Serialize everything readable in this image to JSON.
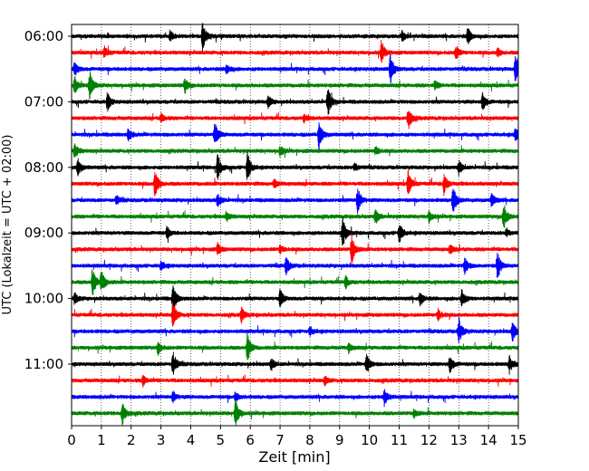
{
  "chart_data": {
    "type": "line",
    "title": "",
    "xlabel": "Zeit  [min]",
    "ylabel": "UTC (Lokalzeit = UTC + 02:00)",
    "xlim": [
      0,
      15
    ],
    "x_ticks": [
      "0",
      "1",
      "2",
      "3",
      "4",
      "5",
      "6",
      "7",
      "8",
      "9",
      "10",
      "11",
      "12",
      "13",
      "14",
      "15"
    ],
    "y_tick_labels": [
      "06:00",
      "07:00",
      "08:00",
      "09:00",
      "10:00",
      "11:00"
    ],
    "trace_start_times": [
      "06:00",
      "06:15",
      "06:30",
      "06:45",
      "07:00",
      "07:15",
      "07:30",
      "07:45",
      "08:00",
      "08:15",
      "08:30",
      "08:45",
      "09:00",
      "09:15",
      "09:30",
      "09:45",
      "10:00",
      "10:15",
      "10:30",
      "10:45",
      "11:00",
      "11:15",
      "11:30",
      "11:45"
    ],
    "trace_colors": [
      "#000000",
      "#ff0000",
      "#0000ff",
      "#008000"
    ],
    "grid": "vertical dotted",
    "events": [
      [
        [
          4.4,
          1.0
        ],
        [
          13.3,
          0.6
        ],
        [
          3.3,
          0.35
        ],
        [
          11.1,
          0.3
        ]
      ],
      [
        [
          10.4,
          0.8
        ],
        [
          1.1,
          0.4
        ],
        [
          12.9,
          0.5
        ],
        [
          14.3,
          0.3
        ]
      ],
      [
        [
          0.1,
          0.5
        ],
        [
          10.7,
          1.0
        ],
        [
          14.9,
          1.0
        ],
        [
          5.2,
          0.35
        ]
      ],
      [
        [
          0.6,
          1.0
        ],
        [
          0.1,
          0.6
        ],
        [
          3.8,
          0.5
        ],
        [
          12.2,
          0.3
        ]
      ],
      [
        [
          8.6,
          1.0
        ],
        [
          1.2,
          0.6
        ],
        [
          13.8,
          0.6
        ],
        [
          6.6,
          0.4
        ]
      ],
      [
        [
          11.3,
          0.8
        ],
        [
          3.0,
          0.3
        ],
        [
          7.8,
          0.25
        ]
      ],
      [
        [
          8.3,
          1.0
        ],
        [
          4.8,
          0.9
        ],
        [
          1.9,
          0.4
        ],
        [
          14.9,
          0.5
        ]
      ],
      [
        [
          0.1,
          0.5
        ],
        [
          7.0,
          0.35
        ],
        [
          10.2,
          0.3
        ]
      ],
      [
        [
          5.9,
          1.0
        ],
        [
          4.9,
          0.9
        ],
        [
          0.2,
          0.6
        ],
        [
          13.0,
          0.45
        ],
        [
          9.5,
          0.3
        ]
      ],
      [
        [
          2.8,
          1.0
        ],
        [
          11.3,
          0.9
        ],
        [
          12.5,
          0.7
        ],
        [
          6.8,
          0.3
        ]
      ],
      [
        [
          9.6,
          0.9
        ],
        [
          12.8,
          1.0
        ],
        [
          14.1,
          0.5
        ],
        [
          4.9,
          0.5
        ],
        [
          1.5,
          0.3
        ]
      ],
      [
        [
          14.5,
          1.0
        ],
        [
          10.2,
          0.5
        ],
        [
          12.0,
          0.4
        ],
        [
          5.2,
          0.3
        ]
      ],
      [
        [
          9.1,
          1.0
        ],
        [
          11.0,
          0.7
        ],
        [
          3.2,
          0.4
        ],
        [
          14.6,
          0.3
        ]
      ],
      [
        [
          9.4,
          1.0
        ],
        [
          4.9,
          0.4
        ],
        [
          7.0,
          0.3
        ],
        [
          12.7,
          0.3
        ]
      ],
      [
        [
          14.3,
          0.9
        ],
        [
          7.2,
          0.6
        ],
        [
          13.2,
          0.6
        ],
        [
          3.0,
          0.3
        ]
      ],
      [
        [
          0.7,
          1.0
        ],
        [
          1.0,
          0.8
        ],
        [
          9.2,
          0.4
        ]
      ],
      [
        [
          3.4,
          1.0
        ],
        [
          7.0,
          0.6
        ],
        [
          11.7,
          0.5
        ],
        [
          13.1,
          0.6
        ],
        [
          0.1,
          0.4
        ]
      ],
      [
        [
          3.4,
          0.9
        ],
        [
          5.7,
          0.5
        ],
        [
          12.3,
          0.4
        ]
      ],
      [
        [
          13.0,
          0.9
        ],
        [
          14.8,
          0.7
        ],
        [
          8.0,
          0.3
        ]
      ],
      [
        [
          5.9,
          1.0
        ],
        [
          2.9,
          0.4
        ],
        [
          9.3,
          0.3
        ]
      ],
      [
        [
          3.4,
          0.9
        ],
        [
          9.9,
          0.7
        ],
        [
          12.7,
          0.6
        ],
        [
          14.7,
          0.6
        ],
        [
          6.7,
          0.4
        ]
      ],
      [
        [
          2.4,
          0.35
        ],
        [
          8.5,
          0.3
        ]
      ],
      [
        [
          10.5,
          0.6
        ],
        [
          3.4,
          0.4
        ],
        [
          5.5,
          0.3
        ]
      ],
      [
        [
          1.7,
          0.9
        ],
        [
          5.5,
          1.0
        ],
        [
          11.5,
          0.3
        ]
      ]
    ]
  }
}
